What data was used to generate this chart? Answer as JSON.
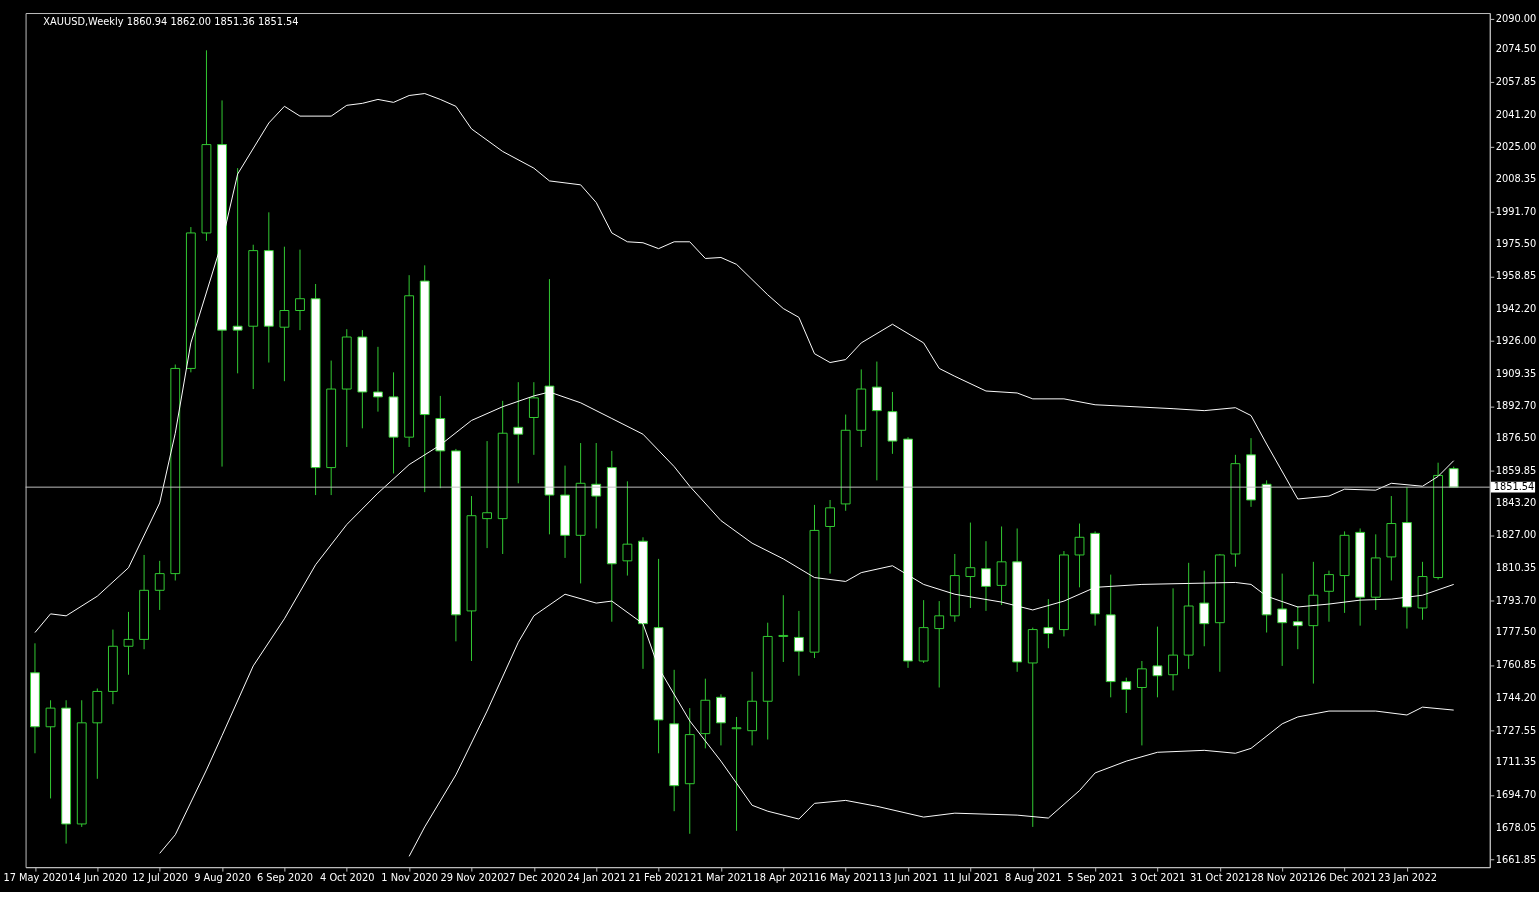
{
  "chart_data": {
    "type": "candlestick",
    "title": "XAUUSD,Weekly 1860.94 1862.00 1851.36 1851.54",
    "x": [
      "2020-05-17",
      "2020-05-24",
      "2020-05-31",
      "2020-06-07",
      "2020-06-14",
      "2020-06-21",
      "2020-06-28",
      "2020-07-05",
      "2020-07-12",
      "2020-07-19",
      "2020-07-26",
      "2020-08-02",
      "2020-08-09",
      "2020-08-16",
      "2020-08-23",
      "2020-08-30",
      "2020-09-06",
      "2020-09-13",
      "2020-09-20",
      "2020-09-27",
      "2020-10-04",
      "2020-10-11",
      "2020-10-18",
      "2020-10-25",
      "2020-11-01",
      "2020-11-08",
      "2020-11-15",
      "2020-11-22",
      "2020-11-29",
      "2020-12-06",
      "2020-12-13",
      "2020-12-20",
      "2020-12-27",
      "2021-01-03",
      "2021-01-10",
      "2021-01-17",
      "2021-01-24",
      "2021-01-31",
      "2021-02-07",
      "2021-02-14",
      "2021-02-21",
      "2021-02-28",
      "2021-03-07",
      "2021-03-14",
      "2021-03-21",
      "2021-03-28",
      "2021-04-04",
      "2021-04-11",
      "2021-04-18",
      "2021-04-25",
      "2021-05-02",
      "2021-05-09",
      "2021-05-16",
      "2021-05-23",
      "2021-05-30",
      "2021-06-06",
      "2021-06-13",
      "2021-06-20",
      "2021-06-27",
      "2021-07-04",
      "2021-07-11",
      "2021-07-18",
      "2021-07-25",
      "2021-08-01",
      "2021-08-08",
      "2021-08-15",
      "2021-08-22",
      "2021-08-29",
      "2021-09-05",
      "2021-09-12",
      "2021-09-19",
      "2021-09-26",
      "2021-10-03",
      "2021-10-10",
      "2021-10-17",
      "2021-10-24",
      "2021-10-31",
      "2021-11-07",
      "2021-11-14",
      "2021-11-21",
      "2021-11-28",
      "2021-12-05",
      "2021-12-12",
      "2021-12-19",
      "2021-12-26",
      "2022-01-02",
      "2022-01-09",
      "2022-01-16",
      "2022-01-23",
      "2022-01-30",
      "2022-02-06",
      "2022-02-13"
    ],
    "series": [
      {
        "color": "#33cc33",
        "ohlc": [
          [
            1757,
            1772,
            1716,
            1729.5
          ],
          [
            1729.5,
            1743,
            1693,
            1739
          ],
          [
            1739,
            1743,
            1670,
            1680
          ],
          [
            1680,
            1743,
            1678.5,
            1731.5
          ],
          [
            1731.5,
            1749,
            1703,
            1747.5
          ],
          [
            1747.5,
            1779,
            1741,
            1770.5
          ],
          [
            1770.5,
            1788,
            1756,
            1774
          ],
          [
            1774,
            1817,
            1769,
            1799
          ],
          [
            1799,
            1814,
            1789,
            1807.5
          ],
          [
            1807.5,
            1914,
            1804,
            1912
          ],
          [
            1912,
            1984,
            1910,
            1981
          ],
          [
            1981,
            2074,
            1977,
            2026
          ],
          [
            2026,
            2048.5,
            1862,
            1931.5
          ],
          [
            1933.5,
            2014,
            1909.5,
            1931.5
          ],
          [
            1933.5,
            1975,
            1901.5,
            1972
          ],
          [
            1972,
            1991.5,
            1915,
            1933.5
          ],
          [
            1933,
            1974,
            1905.5,
            1941.5
          ],
          [
            1941.5,
            1972.5,
            1931.5,
            1947.5
          ],
          [
            1947.5,
            1955,
            1847.5,
            1861.5
          ],
          [
            1861.5,
            1916,
            1847.5,
            1901.5
          ],
          [
            1901.5,
            1932,
            1872,
            1928
          ],
          [
            1928,
            1931.5,
            1881.5,
            1900
          ],
          [
            1900,
            1923,
            1890,
            1897.5
          ],
          [
            1897.5,
            1910,
            1858.5,
            1877
          ],
          [
            1877,
            1959.5,
            1872,
            1949
          ],
          [
            1956.5,
            1964.5,
            1849,
            1888.5
          ],
          [
            1886.5,
            1898,
            1851,
            1870
          ],
          [
            1870,
            1871,
            1773,
            1786.5
          ],
          [
            1788.5,
            1847,
            1763,
            1837
          ],
          [
            1835.5,
            1875,
            1820.5,
            1838.5
          ],
          [
            1835.5,
            1895.5,
            1817.5,
            1879
          ],
          [
            1882,
            1905,
            1853.5,
            1878.5
          ],
          [
            1887,
            1905,
            1868,
            1897
          ],
          [
            1903,
            1957.5,
            1827.5,
            1847.5
          ],
          [
            1847.5,
            1862.5,
            1815.5,
            1827
          ],
          [
            1827,
            1874,
            1802.5,
            1853.5
          ],
          [
            1853,
            1874,
            1830.5,
            1847
          ],
          [
            1861.5,
            1870,
            1783,
            1812.5
          ],
          [
            1814,
            1854.5,
            1806.5,
            1822.5
          ],
          [
            1824,
            1826,
            1759,
            1782
          ],
          [
            1780,
            1815,
            1716,
            1733
          ],
          [
            1731,
            1758.5,
            1686.5,
            1699.5
          ],
          [
            1700.5,
            1739,
            1675,
            1725.5
          ],
          [
            1726,
            1754,
            1718.5,
            1743
          ],
          [
            1744.5,
            1746,
            1720,
            1731.5
          ],
          [
            1728.5,
            1734.5,
            1676.5,
            1729
          ],
          [
            1727.5,
            1757.5,
            1720,
            1742.5
          ],
          [
            1742.5,
            1782.5,
            1723,
            1775.5
          ],
          [
            1775.5,
            1796.5,
            1762.5,
            1776
          ],
          [
            1775,
            1788.5,
            1755.5,
            1768
          ],
          [
            1767.5,
            1842.5,
            1764.5,
            1829.5
          ],
          [
            1831.5,
            1845,
            1807.5,
            1841
          ],
          [
            1843,
            1888.5,
            1839.5,
            1880.5
          ],
          [
            1880.5,
            1911.5,
            1872,
            1901.5
          ],
          [
            1902.5,
            1915.5,
            1855,
            1890.5
          ],
          [
            1890,
            1900,
            1868.5,
            1875
          ],
          [
            1876,
            1877,
            1759.5,
            1763
          ],
          [
            1763,
            1794,
            1762,
            1780
          ],
          [
            1779.5,
            1793.5,
            1749.5,
            1786
          ],
          [
            1786,
            1817.5,
            1783,
            1806.5
          ],
          [
            1806,
            1833.5,
            1790,
            1810.5
          ],
          [
            1810,
            1824,
            1788.5,
            1801
          ],
          [
            1801.5,
            1831.5,
            1791.5,
            1813.5
          ],
          [
            1813.5,
            1830.5,
            1757.5,
            1762.5
          ],
          [
            1762,
            1780,
            1678.5,
            1779
          ],
          [
            1780,
            1794.5,
            1769.5,
            1777
          ],
          [
            1779,
            1819,
            1775.5,
            1817
          ],
          [
            1817,
            1833,
            1800.5,
            1826
          ],
          [
            1828,
            1829,
            1781,
            1787
          ],
          [
            1786.5,
            1807,
            1744.5,
            1752.5
          ],
          [
            1752.5,
            1754.5,
            1736.5,
            1748.5
          ],
          [
            1749.5,
            1763,
            1720,
            1759
          ],
          [
            1760.5,
            1780.5,
            1744.5,
            1755.5
          ],
          [
            1756,
            1800,
            1748,
            1766
          ],
          [
            1766,
            1813,
            1759,
            1791
          ],
          [
            1792.5,
            1809,
            1770.5,
            1782
          ],
          [
            1782.5,
            1817.5,
            1757.5,
            1817
          ],
          [
            1817.5,
            1868,
            1811,
            1863.5
          ],
          [
            1868,
            1876.5,
            1841.5,
            1845
          ],
          [
            1853,
            1855,
            1777.5,
            1786.5
          ],
          [
            1789.5,
            1807.5,
            1760.5,
            1782.5
          ],
          [
            1783,
            1791,
            1769,
            1781
          ],
          [
            1781,
            1813.5,
            1751.5,
            1796.5
          ],
          [
            1798.5,
            1809,
            1783,
            1807
          ],
          [
            1806.5,
            1829,
            1787.5,
            1827
          ],
          [
            1828.5,
            1830.5,
            1781,
            1795.5
          ],
          [
            1795.5,
            1827.5,
            1789,
            1815.5
          ],
          [
            1816,
            1847,
            1804,
            1833
          ],
          [
            1833.5,
            1851.5,
            1779.5,
            1790.5
          ],
          [
            1790,
            1813.5,
            1784,
            1806
          ],
          [
            1805.5,
            1864,
            1804.5,
            1857.5
          ],
          [
            1860.94,
            1862.0,
            1851.36,
            1851.54
          ]
        ],
        "colors": [
          "#ffffff",
          "#000000",
          "#ffffff",
          "#000000",
          "#000000",
          "#000000",
          "#000000",
          "#000000",
          "#000000",
          "#000000",
          "#000000",
          "#000000",
          "#ffffff",
          "#ffffff",
          "#000000",
          "#ffffff",
          "#000000",
          "#000000",
          "#ffffff",
          "#000000",
          "#000000",
          "#ffffff",
          "#ffffff",
          "#ffffff",
          "#000000",
          "#ffffff",
          "#ffffff",
          "#ffffff",
          "#000000",
          "#000000",
          "#000000",
          "#ffffff",
          "#000000",
          "#ffffff",
          "#ffffff",
          "#000000",
          "#ffffff",
          "#ffffff",
          "#000000",
          "#ffffff",
          "#ffffff",
          "#ffffff",
          "#000000",
          "#000000",
          "#ffffff",
          "#000000",
          "#000000",
          "#000000",
          "#000000",
          "#ffffff",
          "#000000",
          "#000000",
          "#000000",
          "#000000",
          "#ffffff",
          "#ffffff",
          "#ffffff",
          "#000000",
          "#000000",
          "#000000",
          "#000000",
          "#ffffff",
          "#000000",
          "#ffffff",
          "#000000",
          "#ffffff",
          "#000000",
          "#000000",
          "#ffffff",
          "#ffffff",
          "#ffffff",
          "#000000",
          "#ffffff",
          "#000000",
          "#000000",
          "#ffffff",
          "#000000",
          "#000000",
          "#ffffff",
          "#ffffff",
          "#ffffff",
          "#ffffff",
          "#000000",
          "#000000",
          "#000000",
          "#ffffff",
          "#000000",
          "#000000",
          "#ffffff",
          "#000000",
          "#000000",
          "#ffffff"
        ]
      },
      {
        "type": "line",
        "color": "#ffffff",
        "x": [
          "2020-05-17",
          "2020-05-24",
          "2020-05-31",
          "2020-06-14",
          "2020-06-28",
          "2020-07-12",
          "2020-07-19",
          "2020-07-26",
          "2020-08-09",
          "2020-08-16",
          "2020-08-30",
          "2020-09-06",
          "2020-09-13",
          "2020-09-27",
          "2020-10-04",
          "2020-10-11",
          "2020-10-18",
          "2020-10-25",
          "2020-11-01",
          "2020-11-08",
          "2020-11-15",
          "2020-11-22",
          "2020-11-29",
          "2020-12-13",
          "2020-12-27",
          "2021-01-03",
          "2021-01-17",
          "2021-01-24",
          "2021-01-31",
          "2021-02-07",
          "2021-02-14",
          "2021-02-21",
          "2021-02-28",
          "2021-03-07",
          "2021-03-14",
          "2021-03-21",
          "2021-03-28",
          "2021-04-11",
          "2021-04-18",
          "2021-04-25",
          "2021-05-02",
          "2021-05-09",
          "2021-05-16",
          "2021-05-23",
          "2021-06-06",
          "2021-06-20",
          "2021-06-27",
          "2021-07-04",
          "2021-07-18",
          "2021-08-01",
          "2021-08-08",
          "2021-08-22",
          "2021-09-05",
          "2021-10-10",
          "2021-10-24",
          "2021-11-07",
          "2021-11-14",
          "2021-11-21",
          "2021-12-05",
          "2021-12-19",
          "2021-12-26",
          "2022-01-09",
          "2022-01-16",
          "2022-01-30",
          "2022-02-06",
          "2022-02-13"
        ],
        "values": [
          1777.5,
          1787,
          1786,
          1796,
          1810.5,
          1843.5,
          1879,
          1925,
          1976.5,
          2011,
          2037,
          2045.5,
          2040.5,
          2040.5,
          2046,
          2047,
          2049,
          2047.5,
          2051,
          2052,
          2049,
          2045.5,
          2034,
          2022.5,
          2014,
          2007.5,
          2005.5,
          1996.5,
          1981,
          1976.5,
          1976,
          1973,
          1976.5,
          1976.5,
          1968,
          1968.5,
          1965,
          1949.5,
          1942.5,
          1938,
          1919.5,
          1915,
          1916.5,
          1925,
          1934.5,
          1925,
          1912,
          1908,
          1900.5,
          1899.5,
          1896.5,
          1896.5,
          1893.5,
          1891.5,
          1890.5,
          1892,
          1888,
          1873.5,
          1845.5,
          1847,
          1850.5,
          1850,
          1853.5,
          1852,
          1857,
          1865
        ]
      },
      {
        "type": "line",
        "color": "#ffffff",
        "x": [
          "2020-07-12",
          "2020-07-19",
          "2020-08-02",
          "2020-08-09",
          "2020-08-23",
          "2020-09-06",
          "2020-09-20",
          "2020-10-04",
          "2020-10-18",
          "2020-11-01",
          "2020-11-15",
          "2020-11-29",
          "2020-12-13",
          "2020-12-27",
          "2021-01-03",
          "2021-01-17",
          "2021-01-31",
          "2021-02-14",
          "2021-02-28",
          "2021-03-07",
          "2021-03-21",
          "2021-04-04",
          "2021-04-18",
          "2021-05-02",
          "2021-05-16",
          "2021-05-23",
          "2021-06-06",
          "2021-06-20",
          "2021-07-04",
          "2021-07-25",
          "2021-08-08",
          "2021-08-22",
          "2021-09-05",
          "2021-09-26",
          "2021-10-17",
          "2021-11-07",
          "2021-11-14",
          "2021-11-21",
          "2021-12-05",
          "2021-12-19",
          "2022-01-02",
          "2022-01-16",
          "2022-01-30",
          "2022-02-13"
        ],
        "values": [
          1665,
          1674.5,
          1707.5,
          1725,
          1760.5,
          1784.5,
          1812,
          1832.5,
          1848.5,
          1863,
          1873,
          1885.5,
          1892.5,
          1898,
          1900,
          1894.5,
          1886.5,
          1878.5,
          1862,
          1852,
          1834.5,
          1823,
          1815,
          1805.5,
          1803.5,
          1808,
          1811.5,
          1802,
          1797,
          1793,
          1789,
          1793.5,
          1800.5,
          1802,
          1802.5,
          1803,
          1802,
          1796,
          1790.5,
          1792,
          1794,
          1794.5,
          1796.5,
          1802
        ]
      },
      {
        "type": "line",
        "color": "#ffffff",
        "x": [
          "2020-11-01",
          "2020-11-08",
          "2020-11-22",
          "2020-12-06",
          "2020-12-20",
          "2020-12-27",
          "2021-01-10",
          "2021-01-24",
          "2021-01-31",
          "2021-02-14",
          "2021-02-21",
          "2021-03-07",
          "2021-03-21",
          "2021-04-04",
          "2021-04-11",
          "2021-04-25",
          "2021-05-02",
          "2021-05-16",
          "2021-05-30",
          "2021-06-20",
          "2021-07-04",
          "2021-08-01",
          "2021-08-15",
          "2021-08-29",
          "2021-09-05",
          "2021-09-19",
          "2021-10-03",
          "2021-10-24",
          "2021-11-07",
          "2021-11-14",
          "2021-11-28",
          "2021-12-05",
          "2021-12-19",
          "2022-01-09",
          "2022-01-23",
          "2022-01-30",
          "2022-02-13"
        ],
        "values": [
          1663.5,
          1678.5,
          1705,
          1737.5,
          1772.5,
          1786,
          1797,
          1792.5,
          1793.5,
          1782,
          1759.5,
          1732.5,
          1712,
          1689.5,
          1686.5,
          1682.5,
          1690.5,
          1692,
          1689,
          1683.5,
          1685.5,
          1684.5,
          1683,
          1697,
          1706,
          1712,
          1716.5,
          1717.5,
          1716,
          1718.5,
          1731,
          1734.5,
          1737.5,
          1737.5,
          1735.5,
          1739.5,
          1738
        ]
      }
    ],
    "xlim": [
      "2020-05-15",
      "2022-02-27"
    ],
    "xticks": [
      {
        "value": "2020-05-17",
        "label": "17 May 2020"
      },
      {
        "value": "2020-06-14",
        "label": "14 Jun 2020"
      },
      {
        "value": "2020-07-12",
        "label": "12 Jul 2020"
      },
      {
        "value": "2020-08-09",
        "label": "9 Aug 2020"
      },
      {
        "value": "2020-09-06",
        "label": "6 Sep 2020"
      },
      {
        "value": "2020-10-04",
        "label": "4 Oct 2020"
      },
      {
        "value": "2020-11-01",
        "label": "1 Nov 2020"
      },
      {
        "value": "2020-11-29",
        "label": "29 Nov 2020"
      },
      {
        "value": "2020-12-27",
        "label": "27 Dec 2020"
      },
      {
        "value": "2021-01-24",
        "label": "24 Jan 2021"
      },
      {
        "value": "2021-02-21",
        "label": "21 Feb 2021"
      },
      {
        "value": "2021-03-21",
        "label": "21 Mar 2021"
      },
      {
        "value": "2021-04-18",
        "label": "18 Apr 2021"
      },
      {
        "value": "2021-05-16",
        "label": "16 May 2021"
      },
      {
        "value": "2021-06-13",
        "label": "13 Jun 2021"
      },
      {
        "value": "2021-07-11",
        "label": "11 Jul 2021"
      },
      {
        "value": "2021-08-08",
        "label": "8 Aug 2021"
      },
      {
        "value": "2021-09-05",
        "label": "5 Sep 2021"
      },
      {
        "value": "2021-10-03",
        "label": "3 Oct 2021"
      },
      {
        "value": "2021-10-31",
        "label": "31 Oct 2021"
      },
      {
        "value": "2021-11-28",
        "label": "28 Nov 2021"
      },
      {
        "value": "2021-12-26",
        "label": "26 Dec 2021"
      },
      {
        "value": "2022-01-23",
        "label": "23 Jan 2022"
      }
    ],
    "ylim": [
      1658,
      2093
    ],
    "yticks": [
      {
        "value": 2090,
        "label": "2090.00"
      },
      {
        "value": 2074.5,
        "label": "2074.50"
      },
      2057.85,
      {
        "value": 2041.2,
        "label": "2041.20"
      },
      {
        "value": 2025,
        "label": "2025.00"
      },
      2008.35,
      {
        "value": 1991.7,
        "label": "1991.70"
      },
      {
        "value": 1975.5,
        "label": "1975.50"
      },
      1958.85,
      {
        "value": 1942.2,
        "label": "1942.20"
      },
      {
        "value": 1926,
        "label": "1926.00"
      },
      1909.35,
      {
        "value": 1892.7,
        "label": "1892.70"
      },
      {
        "value": 1876.5,
        "label": "1876.50"
      },
      1859.85,
      {
        "value": 1843.2,
        "label": "1843.20"
      },
      {
        "value": 1827,
        "label": "1827.00"
      },
      1810.35,
      {
        "value": 1793.7,
        "label": "1793.70"
      },
      {
        "value": 1777.5,
        "label": "1777.50"
      },
      1760.85,
      {
        "value": 1744.2,
        "label": "1744.20"
      },
      1727.55,
      1711.35,
      {
        "value": 1694.7,
        "label": "1694.70"
      },
      1678.05,
      1661.85
    ],
    "ref_lines": [
      {
        "axis": "y",
        "value": 1851.54,
        "label": "1851.54",
        "color": "#c0c0c0",
        "line_style": "solid"
      }
    ]
  }
}
